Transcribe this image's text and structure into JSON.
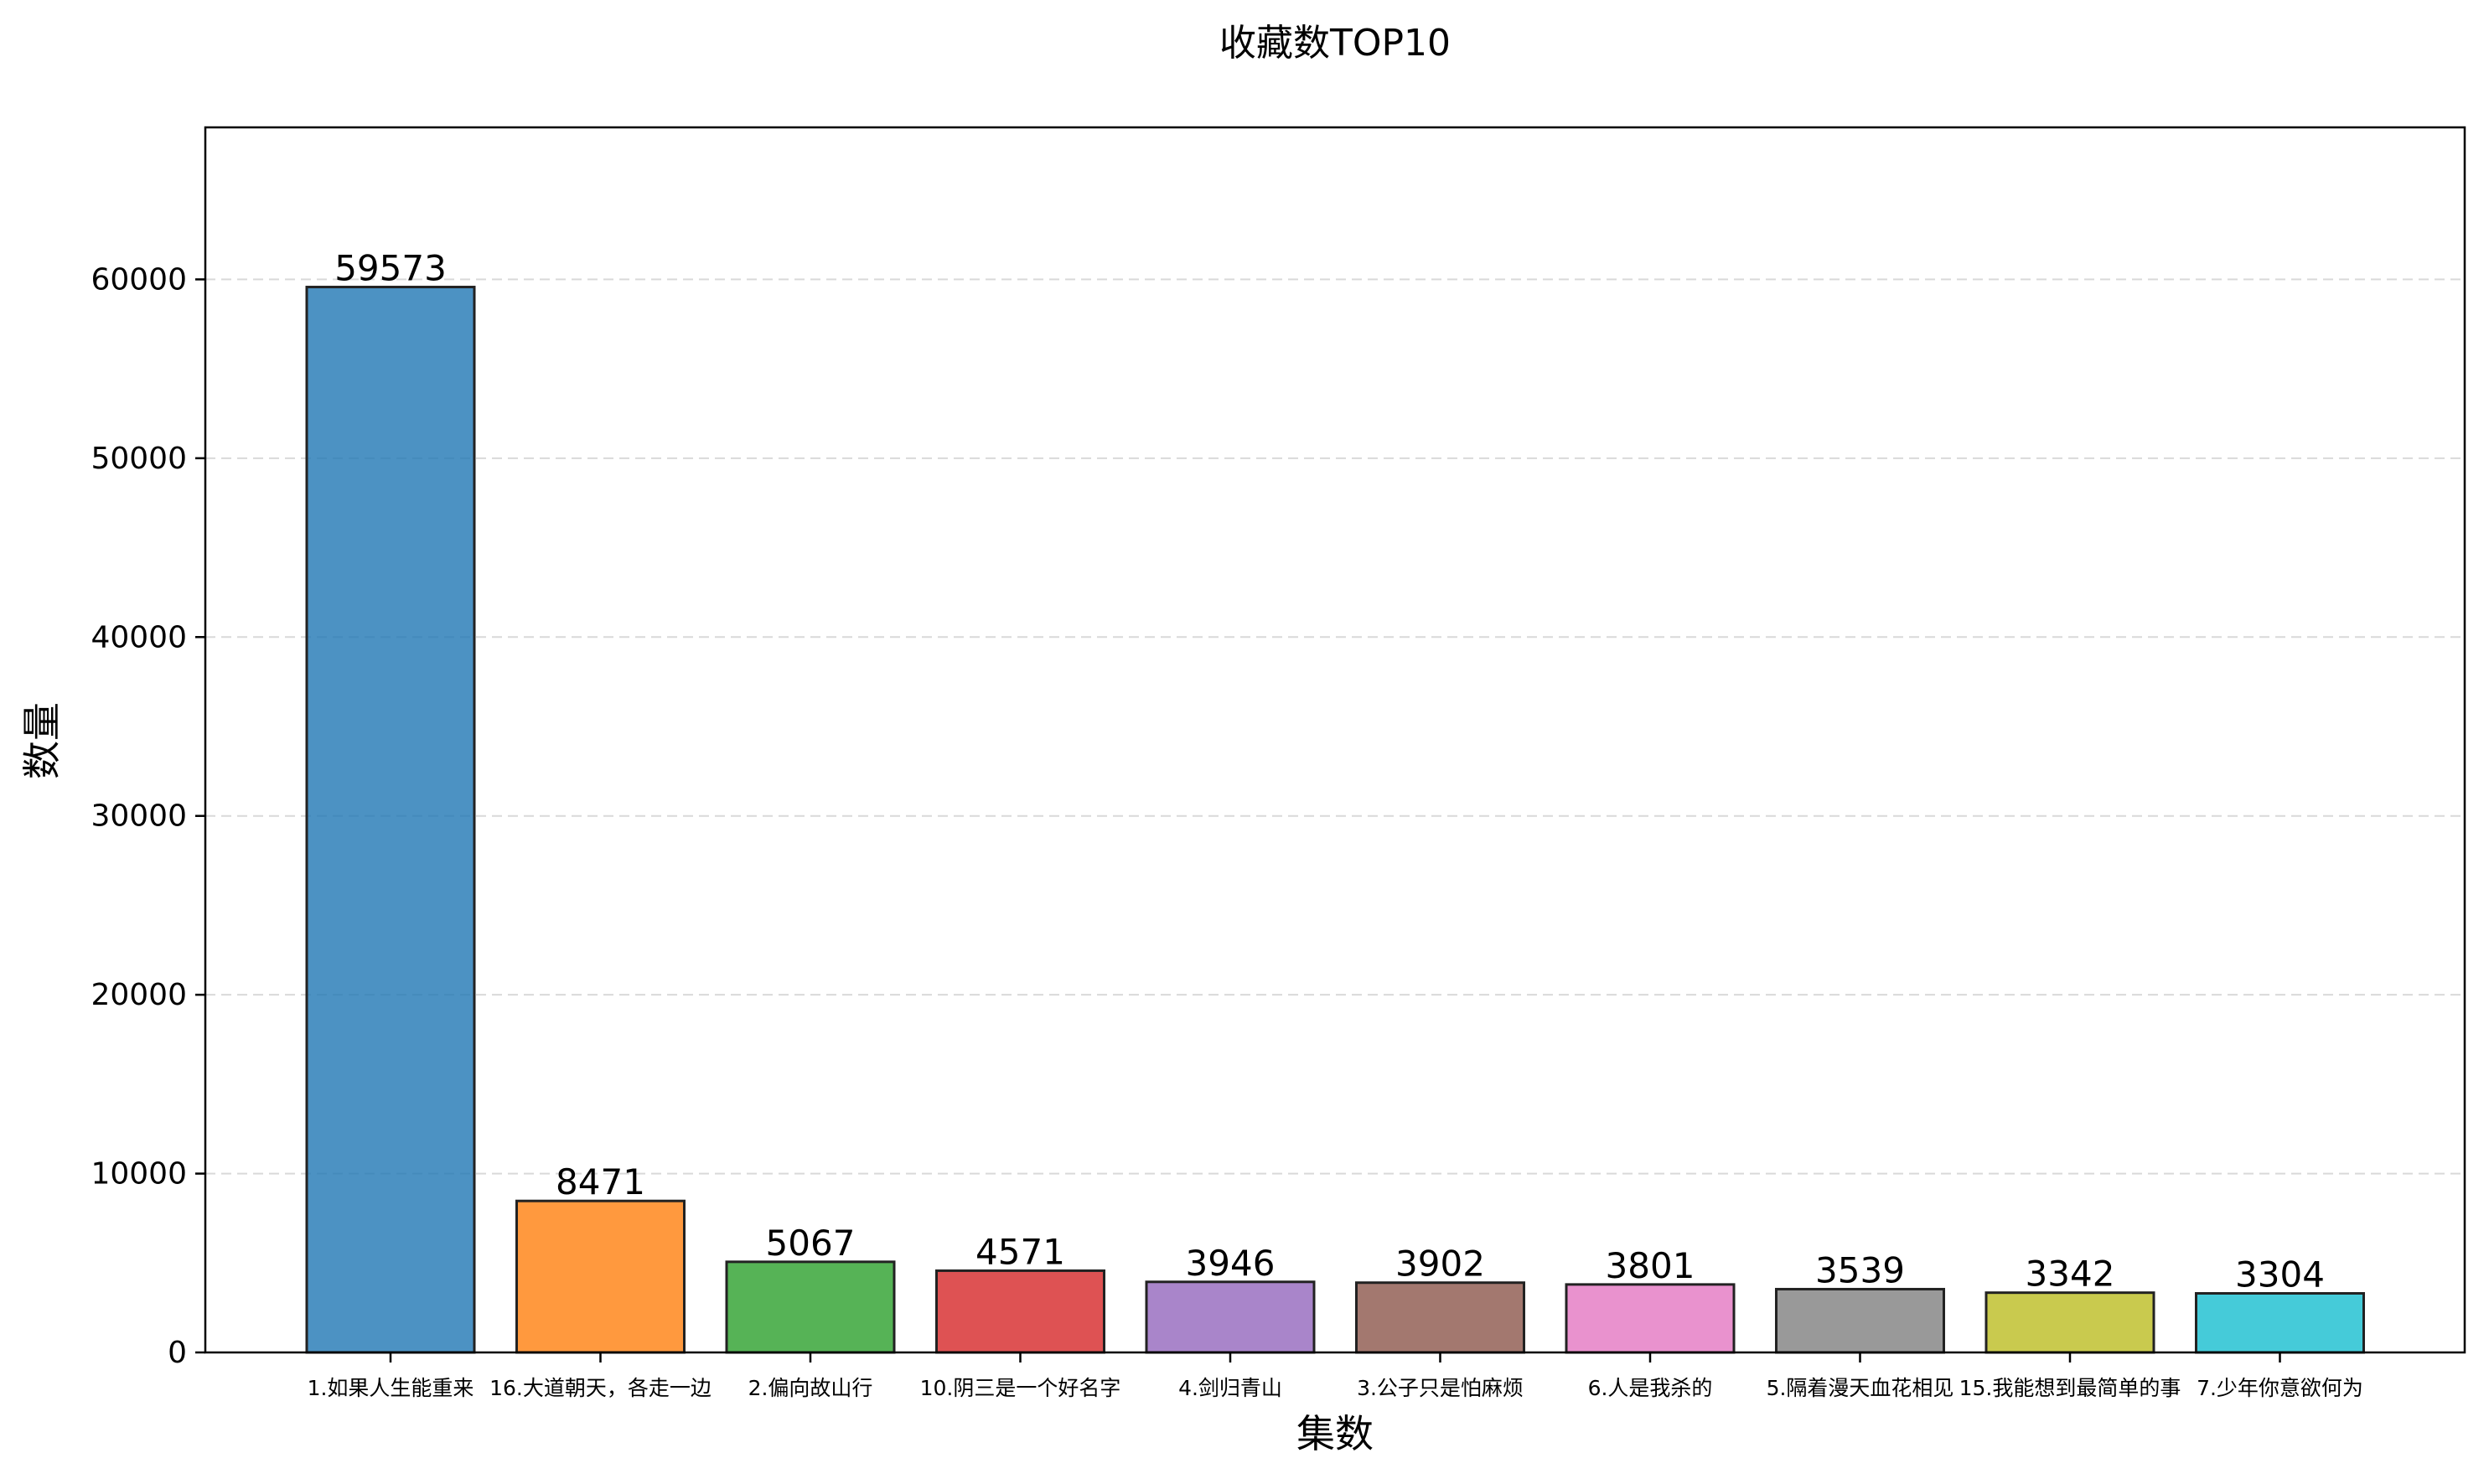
{
  "chart_data": {
    "type": "bar",
    "title": "收藏数TOP10",
    "xlabel": "集数",
    "ylabel": "数量",
    "categories": [
      "1.如果人生能重来",
      "16.大道朝天，各走一边",
      "2.偏向故山行",
      "10.阴三是一个好名字",
      "4.剑归青山",
      "3.公子只是怕麻烦",
      "6.人是我杀的",
      "5.隔着漫天血花相见",
      "15.我能想到最简单的事",
      "7.少年你意欲何为"
    ],
    "values": [
      59573,
      8471,
      5067,
      4571,
      3946,
      3902,
      3801,
      3539,
      3342,
      3304
    ],
    "ylim": [
      0,
      68500
    ],
    "yticks": [
      0,
      10000,
      20000,
      30000,
      40000,
      50000,
      60000
    ],
    "grid": "y-dashed",
    "colors": [
      "#1f77b4",
      "#ff7f0e",
      "#2ca02c",
      "#d62728",
      "#9467bd",
      "#8c564b",
      "#e377c2",
      "#7f7f7f",
      "#bcbd22",
      "#17becf"
    ]
  }
}
